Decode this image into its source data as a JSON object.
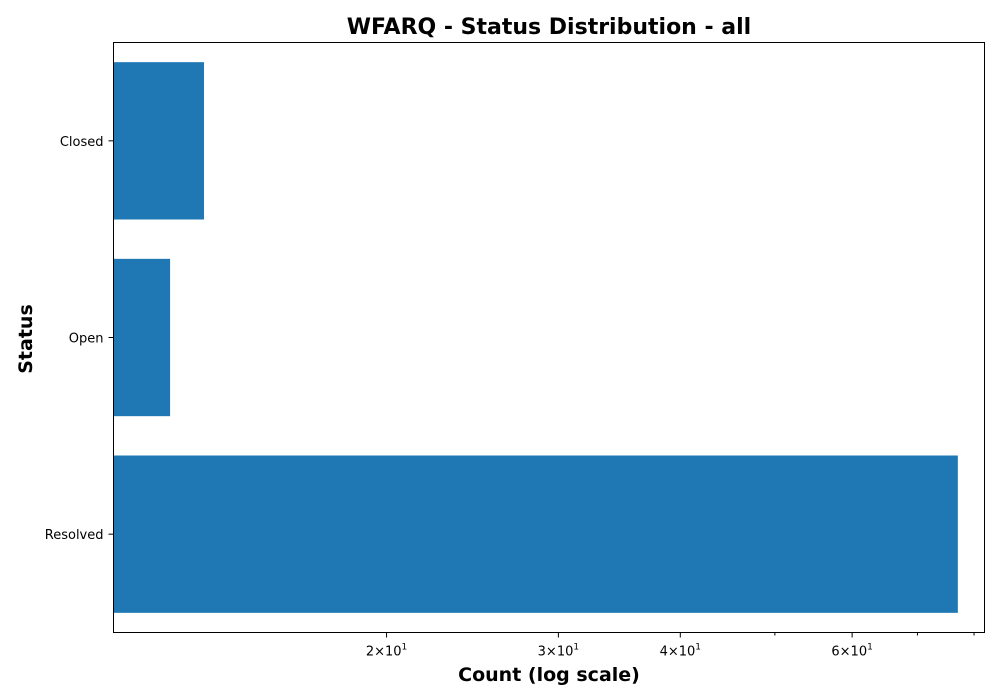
{
  "chart_data": {
    "type": "bar",
    "orientation": "horizontal",
    "title": "WFARQ - Status Distribution - all",
    "xlabel": "Count (log scale)",
    "ylabel": "Status",
    "x_scale": "log",
    "xlim": [
      10.5,
      82
    ],
    "categories": [
      "Closed",
      "Open",
      "Resolved"
    ],
    "values": [
      13,
      12,
      77
    ],
    "x_ticks": [
      {
        "value": 20,
        "base": "2",
        "exp": "1"
      },
      {
        "value": 30,
        "base": "3",
        "exp": "1"
      },
      {
        "value": 40,
        "base": "4",
        "exp": "1"
      },
      {
        "value": 60,
        "base": "6",
        "exp": "1"
      }
    ],
    "minor_ticks": [
      50,
      70,
      80
    ],
    "grid": false,
    "bar_color": "#1f77b4"
  }
}
